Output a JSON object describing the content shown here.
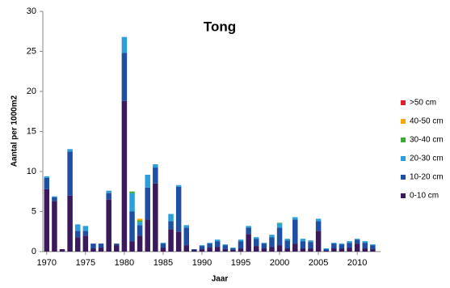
{
  "chart_data": {
    "type": "stacked_bar",
    "title": "Tong",
    "x_label": "Jaar",
    "y_label": "Aantal per 1000m2",
    "x": [
      1970,
      1971,
      1972,
      1973,
      1974,
      1975,
      1976,
      1977,
      1978,
      1979,
      1980,
      1981,
      1982,
      1983,
      1984,
      1985,
      1986,
      1987,
      1988,
      1989,
      1990,
      1991,
      1992,
      1993,
      1994,
      1995,
      1996,
      1997,
      1998,
      1999,
      2000,
      2001,
      2002,
      2003,
      2004,
      2005,
      2006,
      2007,
      2008,
      2009,
      2010,
      2011,
      2012
    ],
    "xlim": [
      1969.5,
      2013
    ],
    "xticks": [
      1970,
      1975,
      1980,
      1985,
      1990,
      1995,
      2000,
      2005,
      2010
    ],
    "ylim": [
      0,
      30
    ],
    "yticks": [
      0,
      5,
      10,
      15,
      20,
      25,
      30
    ],
    "grid": false,
    "legend": "right",
    "series": [
      {
        "name": "0-10 cm",
        "color": "#3a1a5c",
        "values": [
          7.8,
          6.3,
          0.3,
          7,
          1.8,
          2,
          0.4,
          0.5,
          6.5,
          0.8,
          18.8,
          1.3,
          2,
          4,
          8.5,
          0.5,
          2.8,
          2.5,
          0.8,
          0.2,
          0.3,
          0.5,
          0.6,
          0.3,
          0.2,
          0.4,
          2.2,
          0.7,
          0.4,
          0.6,
          0.8,
          0.4,
          1,
          0.4,
          0.4,
          2.6,
          0.1,
          0.4,
          0.4,
          0.5,
          1,
          0.4,
          0.3
        ]
      },
      {
        "name": "10-20 cm",
        "color": "#1f4fa3",
        "values": [
          1.4,
          0.5,
          0,
          5.5,
          0.8,
          0.6,
          0.6,
          0.5,
          0.8,
          0.2,
          6,
          3.7,
          1.3,
          4,
          2,
          0.5,
          1,
          5.6,
          2.2,
          0.1,
          0.4,
          0.5,
          0.7,
          0.5,
          0.2,
          0.9,
          0.8,
          0.9,
          0.6,
          1.2,
          2.2,
          1,
          3,
          0.9,
          0.8,
          1.2,
          0.2,
          0.6,
          0.5,
          0.6,
          0.5,
          0.7,
          0.5
        ]
      },
      {
        "name": "20-30 cm",
        "color": "#2b9fdb",
        "values": [
          0.2,
          0.1,
          0,
          0.3,
          0.8,
          0.6,
          0,
          0,
          0.3,
          0,
          2,
          2.3,
          0.4,
          1.6,
          0.4,
          0.1,
          0.9,
          0.2,
          0.3,
          0,
          0.1,
          0.1,
          0.2,
          0.1,
          0.1,
          0.2,
          0.2,
          0.2,
          0.1,
          0.3,
          0.5,
          0.2,
          0.3,
          0.3,
          0.2,
          0.3,
          0.1,
          0.1,
          0.1,
          0.2,
          0.1,
          0.2,
          0.1
        ]
      },
      {
        "name": "30-40 cm",
        "color": "#3aaa35",
        "values": [
          0,
          0,
          0,
          0,
          0,
          0,
          0,
          0,
          0,
          0,
          0,
          0.2,
          0.2,
          0,
          0,
          0,
          0,
          0,
          0,
          0,
          0,
          0,
          0,
          0,
          0,
          0,
          0,
          0,
          0,
          0,
          0.1,
          0,
          0,
          0,
          0,
          0,
          0,
          0,
          0,
          0,
          0,
          0,
          0
        ]
      },
      {
        "name": "40-50 cm",
        "color": "#f5a800",
        "values": [
          0,
          0,
          0,
          0,
          0,
          0,
          0,
          0,
          0,
          0,
          0,
          0,
          0.2,
          0,
          0,
          0,
          0,
          0,
          0,
          0,
          0,
          0,
          0,
          0,
          0,
          0,
          0,
          0,
          0,
          0,
          0,
          0,
          0,
          0,
          0,
          0,
          0,
          0,
          0,
          0,
          0,
          0,
          0
        ]
      },
      {
        "name": ">50 cm",
        "color": "#e3202a",
        "values": [
          0,
          0,
          0,
          0,
          0,
          0,
          0,
          0,
          0,
          0,
          0,
          0,
          0,
          0,
          0,
          0,
          0,
          0,
          0,
          0,
          0,
          0,
          0,
          0,
          0,
          0,
          0,
          0,
          0,
          0,
          0,
          0,
          0,
          0,
          0,
          0,
          0,
          0,
          0,
          0,
          0,
          0,
          0
        ]
      }
    ]
  }
}
